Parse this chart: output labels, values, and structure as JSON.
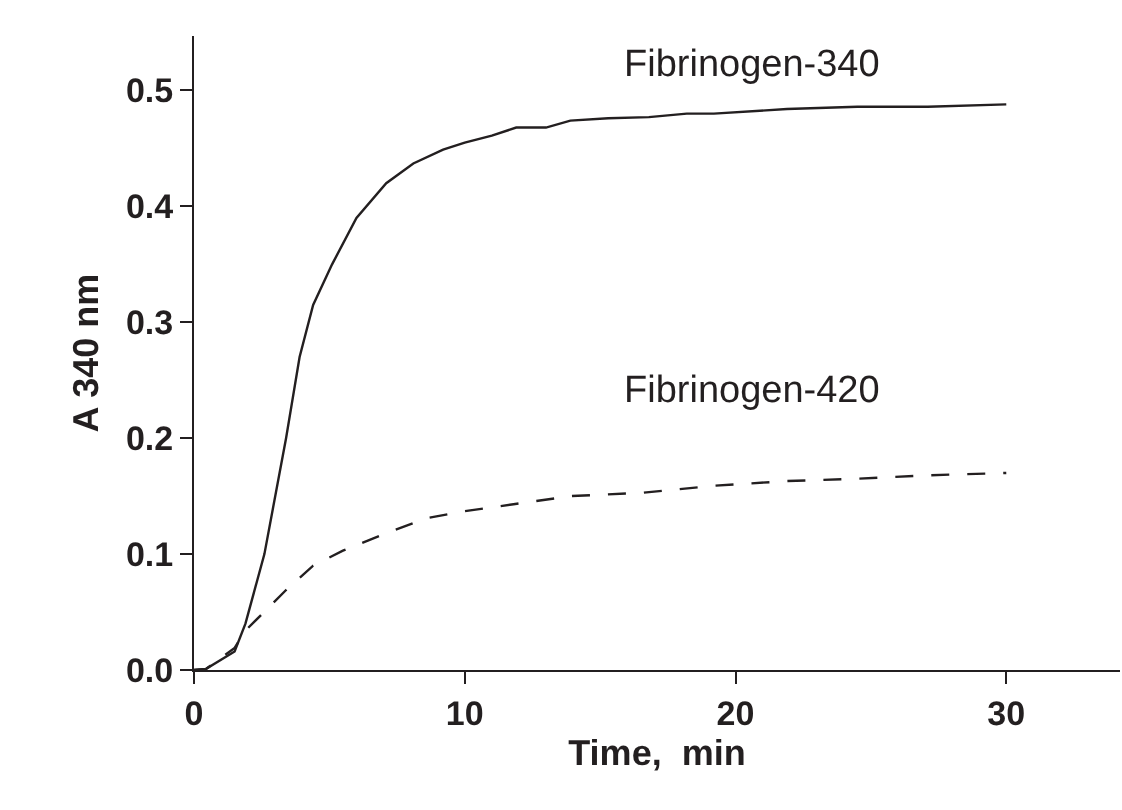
{
  "chart_data": {
    "type": "line",
    "xlabel": "Time,  min",
    "ylabel": "A 340 nm",
    "xlim": [
      0,
      34.2
    ],
    "ylim": [
      0,
      0.547
    ],
    "xticks": [
      0,
      10,
      20,
      30
    ],
    "yticks": [
      {
        "value": 0,
        "label": "0.0"
      },
      {
        "value": 0.1,
        "label": "0.1"
      },
      {
        "value": 0.2,
        "label": "0.2"
      },
      {
        "value": 0.3,
        "label": "0.3"
      },
      {
        "value": 0.4,
        "label": "0.4"
      },
      {
        "value": 0.5,
        "label": "0.5"
      }
    ],
    "grid": false,
    "legend": false,
    "marker": "none",
    "series": [
      {
        "name": "Fibrinogen-340",
        "color": "#231f20",
        "line_style": "solid",
        "x": [
          0,
          0.45,
          1.5,
          1.9,
          2.6,
          3.4,
          3.9,
          4.4,
          5.1,
          6.0,
          7.1,
          8.1,
          9.2,
          10,
          11,
          11.9,
          13,
          13.9,
          15.3,
          16.8,
          18.2,
          19.2,
          21.9,
          24.5,
          27.1,
          30
        ],
        "values": [
          0,
          0.001,
          0.016,
          0.04,
          0.1,
          0.2,
          0.27,
          0.315,
          0.35,
          0.39,
          0.42,
          0.437,
          0.449,
          0.455,
          0.461,
          0.468,
          0.468,
          0.474,
          0.476,
          0.477,
          0.48,
          0.48,
          0.484,
          0.486,
          0.486,
          0.488
        ]
      },
      {
        "name": "Fibrinogen-420",
        "color": "#231f20",
        "line_style": "dashed",
        "x": [
          0,
          0.45,
          1.5,
          1.9,
          3.4,
          4.4,
          5.5,
          7.1,
          8.6,
          10,
          11.8,
          13.9,
          16.6,
          19.2,
          21.9,
          24.5,
          27.1,
          30
        ],
        "values": [
          0,
          0.001,
          0.019,
          0.034,
          0.069,
          0.09,
          0.103,
          0.118,
          0.131,
          0.137,
          0.143,
          0.15,
          0.153,
          0.159,
          0.163,
          0.165,
          0.168,
          0.17
        ]
      }
    ]
  }
}
